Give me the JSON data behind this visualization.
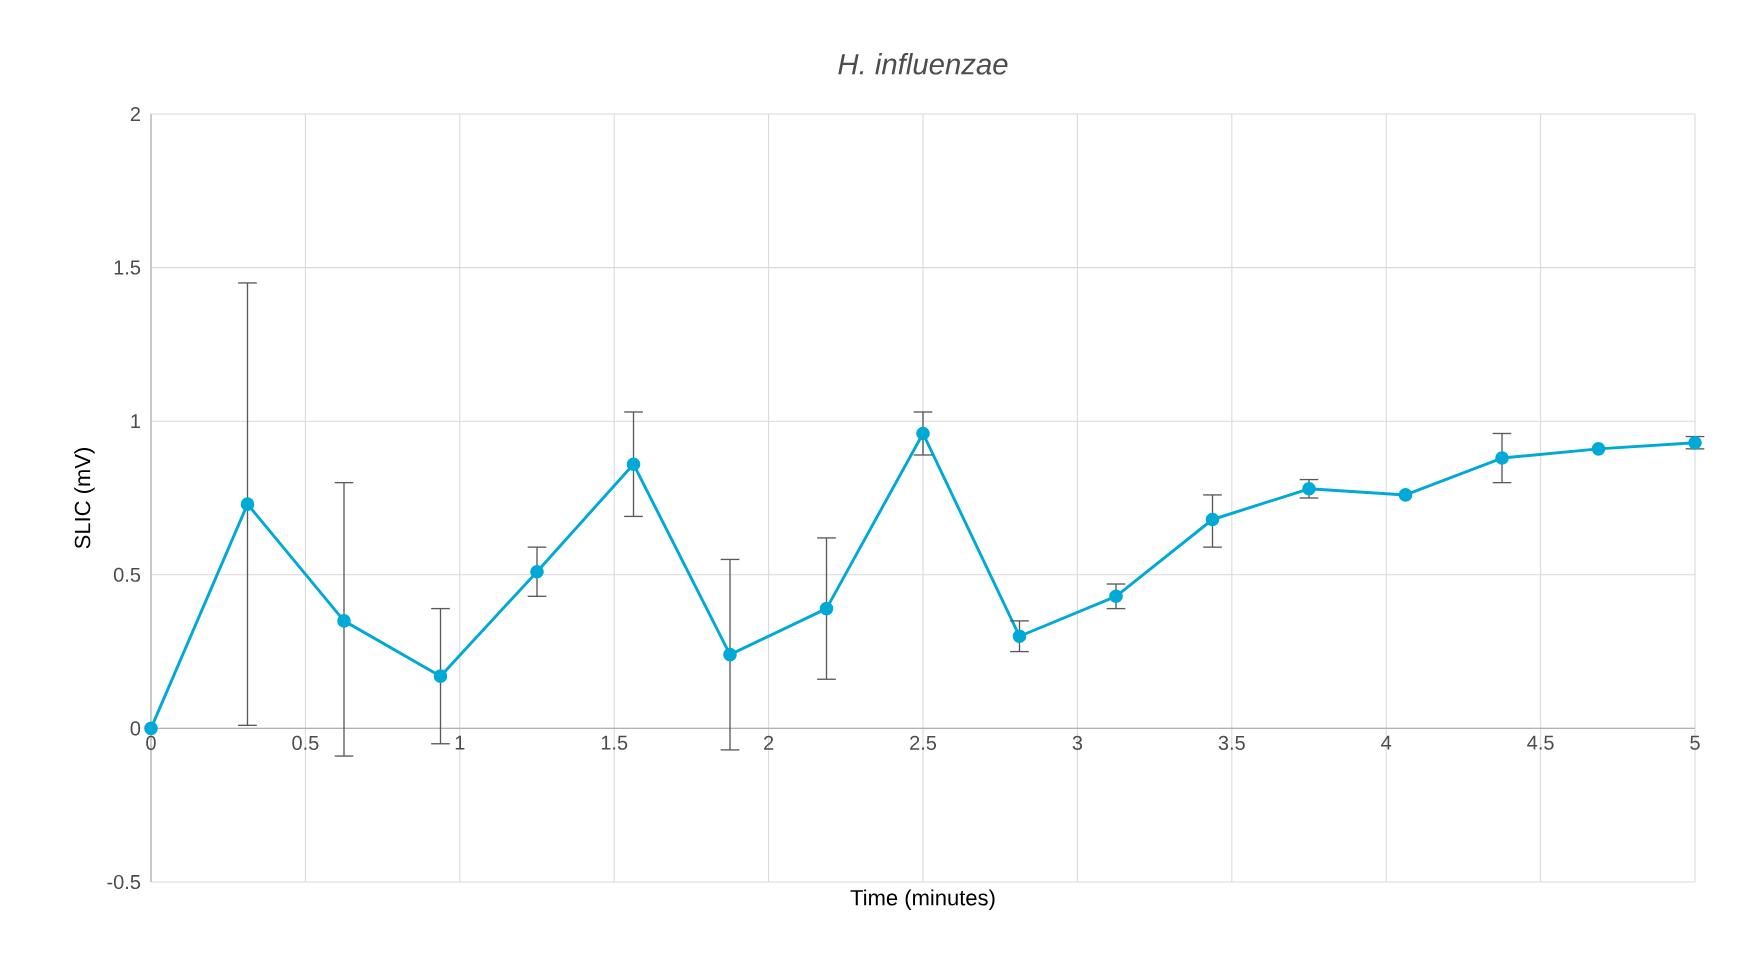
{
  "chart_data": {
    "type": "line",
    "title": "H. influenzae",
    "xlabel": "Time (minutes)",
    "ylabel": "SLIC (mV)",
    "x": [
      0,
      0.3125,
      0.625,
      0.9375,
      1.25,
      1.5625,
      1.875,
      2.1875,
      2.5,
      2.8125,
      3.125,
      3.4375,
      3.75,
      4.0625,
      4.375,
      4.6875,
      5
    ],
    "series": [
      {
        "color": "#00a9d6",
        "values": [
          0,
          0.73,
          0.35,
          0.17,
          0.51,
          0.86,
          0.24,
          0.39,
          0.96,
          0.3,
          0.43,
          0.68,
          0.78,
          0.76,
          0.88,
          0.91,
          0.93
        ],
        "errors": [
          null,
          [
            0.01,
            1.45
          ],
          [
            -0.09,
            0.8
          ],
          [
            -0.05,
            0.39
          ],
          [
            0.43,
            0.59
          ],
          [
            0.69,
            1.03
          ],
          [
            -0.07,
            0.55
          ],
          [
            0.16,
            0.62
          ],
          [
            0.89,
            1.03
          ],
          [
            0.25,
            0.35
          ],
          [
            0.39,
            0.47
          ],
          [
            0.59,
            0.76
          ],
          [
            0.75,
            0.81
          ],
          null,
          [
            0.8,
            0.96
          ],
          null,
          [
            0.91,
            0.95
          ]
        ]
      }
    ],
    "xlim": [
      0,
      5
    ],
    "ylim": [
      -0.5,
      2
    ],
    "xticks": [
      0,
      0.5,
      1,
      1.5,
      2,
      2.5,
      3,
      3.5,
      4,
      4.5,
      5
    ],
    "yticks": [
      -0.5,
      0,
      0.5,
      1,
      1.5,
      2
    ],
    "grid": true,
    "marker": "circle",
    "line_style": "solid"
  }
}
